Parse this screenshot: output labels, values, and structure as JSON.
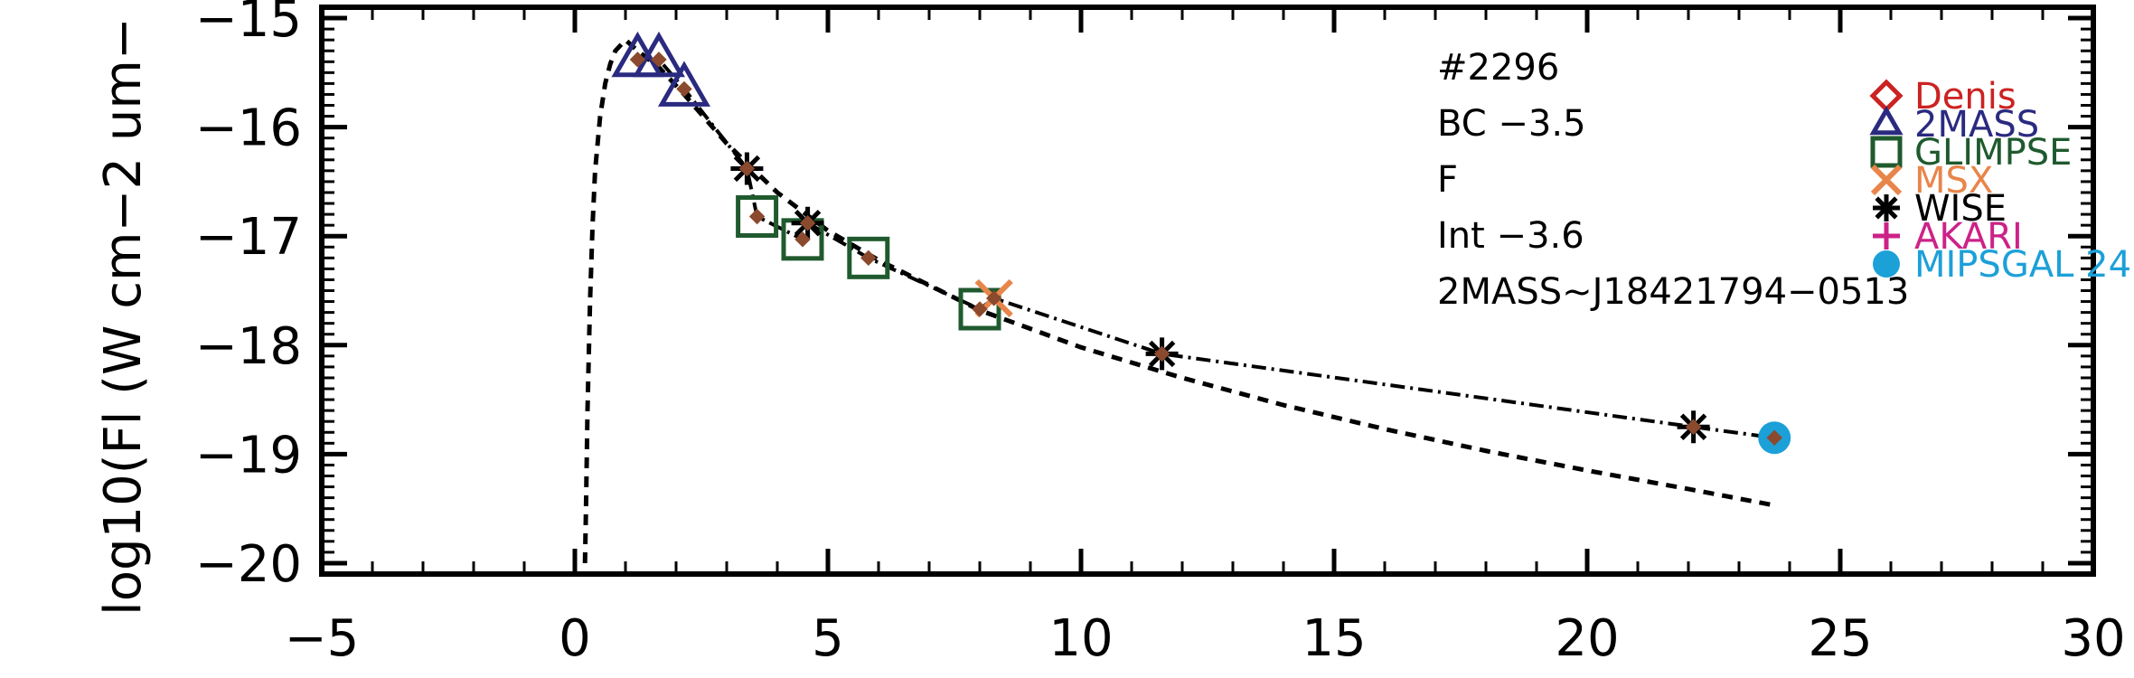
{
  "chart_data": {
    "type": "scatter",
    "title": "",
    "xlabel": "",
    "ylabel": "log10(Fl (W cm−2 um−",
    "xlim": [
      -5,
      30
    ],
    "ylim": [
      -20.1,
      -14.9
    ],
    "x_ticks": [
      -5,
      0,
      5,
      10,
      15,
      20,
      25,
      30
    ],
    "x_tick_labels": [
      "−5",
      "0",
      "5",
      "10",
      "15",
      "20",
      "25",
      "30"
    ],
    "y_ticks": [
      -20,
      -19,
      -18,
      -17,
      -16,
      -15
    ],
    "y_tick_labels": [
      "−20",
      "−19",
      "−18",
      "−17",
      "−16",
      "−15"
    ],
    "grid": false,
    "legend_position": "right",
    "annotations": [
      "#2296",
      "BC  −3.5",
      "F",
      "Int  −3.6",
      "2MASS~J18421794−0513"
    ],
    "series": [
      {
        "name": "Denis",
        "color": "#cc2222",
        "marker": "diamond",
        "x": [],
        "y": []
      },
      {
        "name": "2MASS",
        "color": "#2a2a80",
        "marker": "triangle",
        "x": [
          1.24,
          1.66,
          2.16
        ],
        "y": [
          -15.38,
          -15.38,
          -15.65
        ]
      },
      {
        "name": "GLIMPSE",
        "color": "#1f5a2e",
        "marker": "square",
        "x": [
          3.6,
          4.5,
          5.8,
          8.0
        ],
        "y": [
          -16.82,
          -17.03,
          -17.2,
          -17.67
        ]
      },
      {
        "name": "MSX",
        "color": "#e8854a",
        "marker": "x",
        "x": [
          8.28
        ],
        "y": [
          -17.57
        ]
      },
      {
        "name": "WISE",
        "color": "#000000",
        "marker": "asterisk",
        "x": [
          3.4,
          4.6,
          11.6,
          22.1
        ],
        "y": [
          -16.38,
          -16.88,
          -18.08,
          -18.75
        ]
      },
      {
        "name": "AKARI",
        "color": "#cc2288",
        "marker": "plus",
        "x": [],
        "y": []
      },
      {
        "name": "MIPSGAL 24",
        "color": "#1ca0d8",
        "marker": "circle",
        "x": [
          23.7
        ],
        "y": [
          -18.85
        ]
      }
    ],
    "flux_points": {
      "color": "#8b4a2e",
      "x": [
        1.24,
        1.66,
        2.16,
        3.4,
        3.6,
        4.5,
        4.6,
        5.8,
        8.0,
        8.28,
        11.6,
        22.1,
        23.7
      ],
      "y": [
        -15.38,
        -15.38,
        -15.65,
        -16.38,
        -16.82,
        -17.03,
        -16.88,
        -17.2,
        -17.67,
        -17.57,
        -18.08,
        -18.75,
        -18.85
      ]
    },
    "model_curve": {
      "style": "dashed",
      "x": [
        0.2,
        0.22,
        0.25,
        0.3,
        0.35,
        0.4,
        0.5,
        0.6,
        0.7,
        0.8,
        1.0,
        1.24,
        1.66,
        2.16,
        3.0,
        4.0,
        5.0,
        6.0,
        7.0,
        8.0,
        10.0,
        12.0,
        14.0,
        16.0,
        18.0,
        20.0,
        22.0,
        23.7
      ],
      "y": [
        -20.0,
        -19.5,
        -18.6,
        -17.6,
        -16.9,
        -16.4,
        -15.9,
        -15.6,
        -15.42,
        -15.3,
        -15.2,
        -15.3,
        -15.45,
        -15.7,
        -16.15,
        -16.6,
        -16.95,
        -17.22,
        -17.45,
        -17.68,
        -18.02,
        -18.3,
        -18.55,
        -18.77,
        -18.97,
        -19.15,
        -19.32,
        -19.47
      ]
    },
    "sed_line": {
      "style": "dash-dot",
      "x": [
        1.24,
        1.66,
        2.16,
        3.4,
        3.6,
        4.5,
        4.6,
        5.8,
        8.0,
        8.28,
        11.6,
        22.1,
        23.7
      ],
      "y": [
        -15.38,
        -15.38,
        -15.65,
        -16.38,
        -16.82,
        -17.03,
        -16.88,
        -17.2,
        -17.67,
        -17.57,
        -18.08,
        -18.75,
        -18.85
      ]
    }
  }
}
